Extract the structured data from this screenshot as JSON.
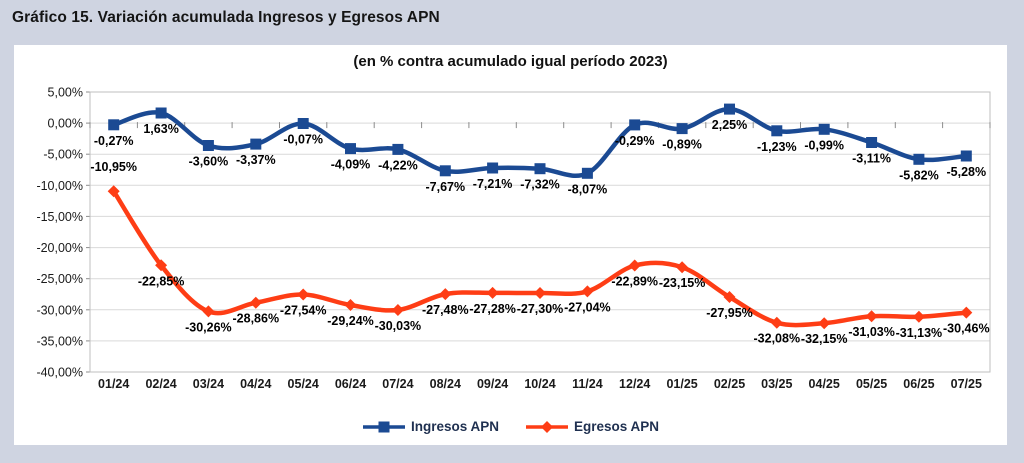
{
  "page": {
    "title": "Gráfico 15. Variación acumulada Ingresos y Egresos APN"
  },
  "colors": {
    "page_background": "#cfd4e1",
    "chart_background": "#ffffff",
    "gridline": "#d9d9d9",
    "frame": "#bfbfbf",
    "tick": "#8c8c8c",
    "ingresos_blue": "#1b4a93",
    "egresos_red": "#fe3d15"
  },
  "chart_data": {
    "type": "line",
    "title": "Gráfico 15. Variación acumulada Ingresos y Egresos APN",
    "subtitle": "(en % contra acumulado igual período 2023)",
    "categories": [
      "01/24",
      "02/24",
      "03/24",
      "04/24",
      "05/24",
      "06/24",
      "07/24",
      "08/24",
      "09/24",
      "10/24",
      "11/24",
      "12/24",
      "01/25",
      "02/25",
      "03/25",
      "04/25",
      "05/25",
      "06/25",
      "07/25"
    ],
    "series": [
      {
        "name": "Ingresos APN",
        "color": "#1b4a93",
        "marker": "square",
        "smoothed": true,
        "values": [
          -0.27,
          1.63,
          -3.6,
          -3.37,
          -0.07,
          -4.09,
          -4.22,
          -7.67,
          -7.21,
          -7.32,
          -8.07,
          -0.29,
          -0.89,
          2.25,
          -1.23,
          -0.99,
          -3.11,
          -5.82,
          -5.28
        ],
        "labels": [
          "-0,27%",
          "1,63%",
          "-3,60%",
          "-3,37%",
          "-0,07%",
          "-4,09%",
          "-4,22%",
          "-7,67%",
          "-7,21%",
          "-7,32%",
          "-8,07%",
          "-0,29%",
          "-0,89%",
          "2,25%",
          "-1,23%",
          "-0,99%",
          "-3,11%",
          "-5,82%",
          "-5,28%"
        ]
      },
      {
        "name": "Egresos APN",
        "color": "#fe3d15",
        "marker": "diamond",
        "smoothed": true,
        "values": [
          -10.95,
          -22.85,
          -30.26,
          -28.86,
          -27.54,
          -29.24,
          -30.03,
          -27.48,
          -27.28,
          -27.3,
          -27.04,
          -22.89,
          -23.15,
          -27.95,
          -32.08,
          -32.15,
          -31.03,
          -31.13,
          -30.46
        ],
        "labels": [
          "-10,95%",
          "-22,85%",
          "-30,26%",
          "-28,86%",
          "-27,54%",
          "-29,24%",
          "-30,03%",
          "-27,48%",
          "-27,28%",
          "-27,30%",
          "-27,04%",
          "-22,89%",
          "-23,15%",
          "-27,95%",
          "-32,08%",
          "-32,15%",
          "-31,03%",
          "-31,13%",
          "-30,46%"
        ]
      }
    ],
    "y_axis": {
      "min": -40,
      "max": 5,
      "step": 5,
      "tick_labels": [
        "5,00%",
        "0,00%",
        "-5,00%",
        "-10,00%",
        "-15,00%",
        "-20,00%",
        "-25,00%",
        "-30,00%",
        "-35,00%",
        "-40,00%"
      ]
    },
    "grid": true,
    "legend_position": "bottom"
  }
}
